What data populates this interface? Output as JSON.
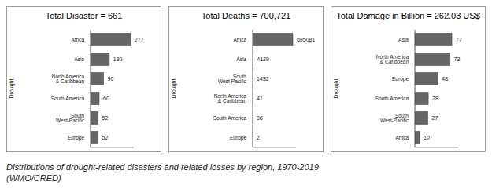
{
  "chart_data": [
    {
      "type": "bar",
      "orientation": "horizontal",
      "title": "Total Disaster = 661",
      "ylabel": "Drought",
      "categories": [
        "Africa",
        "Asia",
        "North America & Caribbean",
        "South America",
        "South West-Pacific",
        "Europe"
      ],
      "values": [
        277,
        130,
        90,
        60,
        52,
        52
      ],
      "color": "#666666",
      "xlim": [
        0,
        300
      ],
      "tick_labels": false,
      "data_labels": true
    },
    {
      "type": "bar",
      "orientation": "horizontal",
      "title": "Total Deaths = 700,721",
      "ylabel": "Drought",
      "categories": [
        "Africa",
        "Asia",
        "South West-Pacific",
        "North America & Caribbean",
        "South America",
        "Europe"
      ],
      "values": [
        695081,
        4129,
        1432,
        41,
        36,
        2
      ],
      "color": "#666666",
      "xlim": [
        0,
        750000
      ],
      "tick_labels": false,
      "data_labels": true
    },
    {
      "type": "bar",
      "orientation": "horizontal",
      "title": "Total Damage in Billion = 262.03 US$",
      "ylabel": "Drought",
      "categories": [
        "Asia",
        "North America & Caribbean",
        "Europe",
        "South America",
        "South West-Pacific",
        "Africa"
      ],
      "values": [
        77,
        73,
        48,
        28,
        27,
        10
      ],
      "color": "#666666",
      "xlim": [
        0,
        90
      ],
      "tick_labels": false,
      "data_labels": true
    }
  ],
  "caption": "Distributions of drought-related disasters and related losses by region, 1970-2019 (WMO/CRED)"
}
